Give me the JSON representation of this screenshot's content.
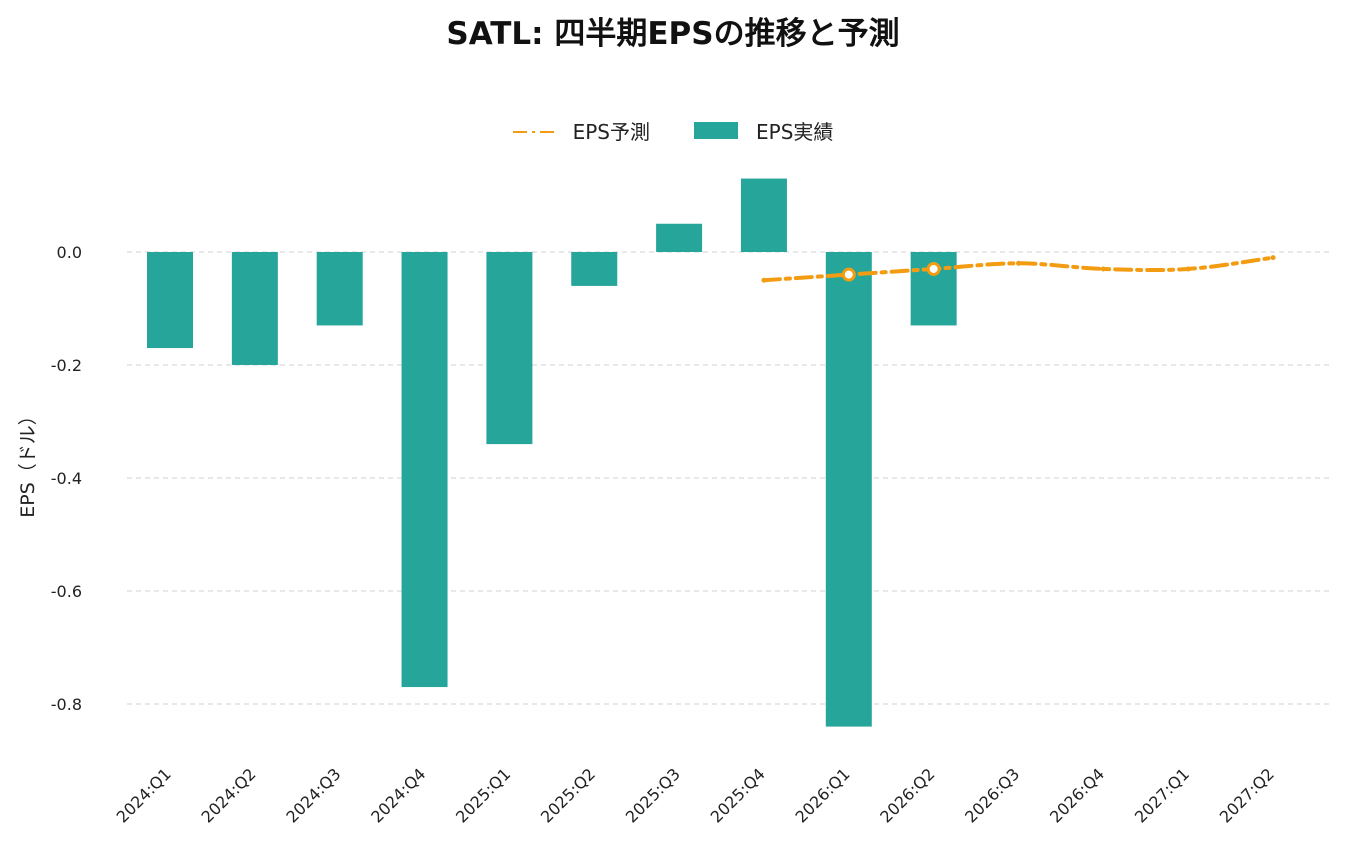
{
  "colors": {
    "actual": "#26a69a",
    "forecast": "#f39c12",
    "grid": "#d9d9d9",
    "text": "#222222"
  },
  "chart_data": {
    "type": "bar",
    "title": "SATL: 四半期EPSの推移と予測",
    "xlabel": "",
    "ylabel": "EPS（ドル）",
    "ylim": [
      -0.89,
      0.2
    ],
    "yticks": [
      0.0,
      -0.2,
      -0.4,
      -0.6,
      -0.8
    ],
    "ytick_labels": [
      "0.0",
      "-0.2",
      "-0.4",
      "-0.6",
      "-0.8"
    ],
    "grid": true,
    "legend_position": "top-center",
    "categories": [
      "2024:Q1",
      "2024:Q2",
      "2024:Q3",
      "2024:Q4",
      "2025:Q1",
      "2025:Q2",
      "2025:Q3",
      "2025:Q4",
      "2026:Q1",
      "2026:Q2",
      "2026:Q3",
      "2026:Q4",
      "2027:Q1",
      "2027:Q2"
    ],
    "series": [
      {
        "name": "EPS予測",
        "type": "line",
        "values": [
          null,
          null,
          null,
          null,
          null,
          null,
          null,
          -0.05,
          -0.04,
          -0.03,
          -0.02,
          -0.03,
          -0.03,
          -0.01
        ],
        "highlight_points": [
          "2026:Q1",
          "2026:Q2"
        ]
      },
      {
        "name": "EPS実績",
        "type": "bar",
        "values": [
          -0.17,
          -0.2,
          -0.13,
          -0.77,
          -0.34,
          -0.06,
          0.05,
          0.13,
          -0.84,
          -0.13,
          null,
          null,
          null,
          null
        ]
      }
    ]
  }
}
